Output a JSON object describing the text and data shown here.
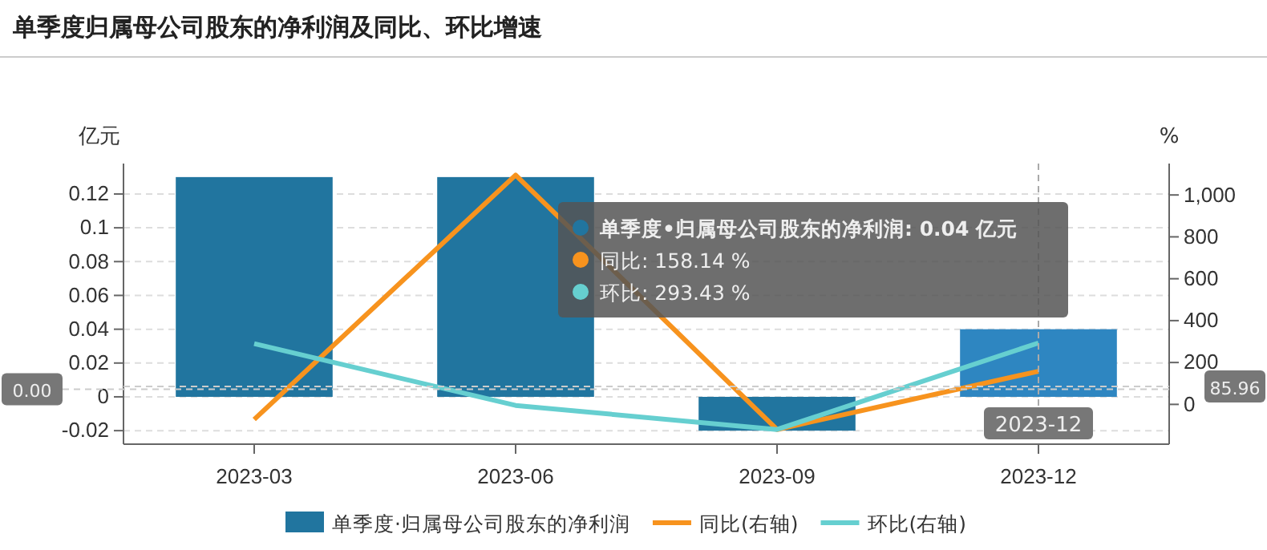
{
  "chart_data": {
    "type": "bar",
    "title": "单季度归属母公司股东的净利润及同比、环比增速",
    "ylabel": "亿元",
    "y2label": "%",
    "categories": [
      "2023-03",
      "2023-06",
      "2023-09",
      "2023-12"
    ],
    "series": [
      {
        "name": "单季度·归属母公司股东的净利润",
        "color": "#21759f",
        "colors": [
          "#21759f",
          "#21759f",
          "#21759f",
          "#2e86c1"
        ],
        "values": [
          0.13,
          0.13,
          -0.02,
          0.04
        ]
      },
      {
        "name": "同比(右轴)",
        "type": "line",
        "axis": "y2",
        "color": "#f7931e",
        "values": [
          -72,
          1095,
          -120,
          158.14
        ]
      },
      {
        "name": "环比(右轴)",
        "type": "line",
        "axis": "y2",
        "color": "#66cfd0",
        "values": [
          290,
          -5,
          -120,
          293.43
        ]
      }
    ],
    "ylim": [
      -0.028,
      0.138
    ],
    "yticks": [
      -0.02,
      0,
      0.02,
      0.04,
      0.06,
      0.08,
      0.1,
      0.12
    ],
    "y2lim": [
      -190,
      1150
    ],
    "y2ticks": [
      0,
      200,
      400,
      600,
      800,
      {
        "value": 1000,
        "label": "1,000"
      }
    ],
    "ref_lines": [
      {
        "axis": "x",
        "value": "2023-12",
        "label": "2023-12",
        "line_style": "dashed"
      },
      {
        "axis": "y",
        "value": 0.0045,
        "label": "0.00",
        "line_style": "dashed"
      },
      {
        "axis": "y2",
        "value": 85.96,
        "label": "85.96",
        "line_style": "dashed"
      }
    ],
    "annotations": [
      "单季度•归属母公司股东的净利润: 0.04  亿元",
      "同比: 158.14  %",
      "环比: 293.43  %"
    ],
    "grid": "y",
    "legend": "bottom",
    "marker": "none"
  }
}
